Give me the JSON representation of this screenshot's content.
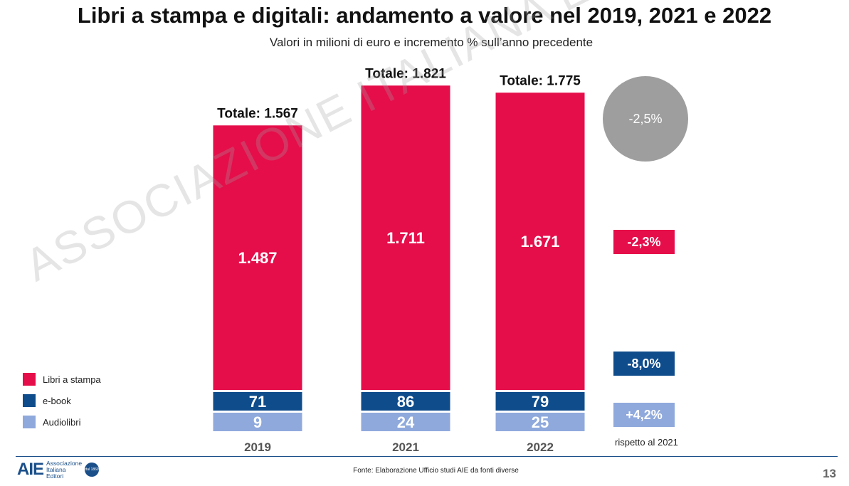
{
  "title": "Libri a stampa e digitali: andamento a valore nel 2019, 2021 e 2022",
  "subtitle": "Valori in milioni di euro e incremento % sull’anno precedente",
  "watermark": "ASSOCIAZIONE ITALIANA EDITORI",
  "chart_data": {
    "type": "bar",
    "stacked": true,
    "categories": [
      "2019",
      "2021",
      "2022"
    ],
    "series": [
      {
        "name": "Audiolibri",
        "values": [
          9,
          24,
          25
        ],
        "value_labels": [
          "9",
          "24",
          "25"
        ],
        "color": "#8fa9dc"
      },
      {
        "name": "e-book",
        "values": [
          71,
          86,
          79
        ],
        "value_labels": [
          "71",
          "86",
          "79"
        ],
        "color": "#0f4c8c"
      },
      {
        "name": "Libri a stampa",
        "values": [
          1487,
          1711,
          1671
        ],
        "value_labels": [
          "1.487",
          "1.711",
          "1.671"
        ],
        "color": "#e50d4a"
      }
    ],
    "totals": [
      1567,
      1821,
      1775
    ],
    "total_labels": [
      "Totale: 1.567",
      "Totale: 1.821",
      "Totale: 1.775"
    ],
    "legend_placement": "bottom-left",
    "grid": false
  },
  "legend": [
    {
      "label": "Libri a stampa",
      "color": "#e50d4a"
    },
    {
      "label": "e-book",
      "color": "#0f4c8c"
    },
    {
      "label": "Audiolibri",
      "color": "#8fa9dc"
    }
  ],
  "changes": {
    "total": "-2,5%",
    "libri_a_stampa": "-2,3%",
    "ebook": "-8,0%",
    "audiolibri": "+4,2%",
    "note": "rispetto al 2021",
    "total_color": "#9e9e9e"
  },
  "footer": {
    "source": "Fonte: Elaborazione Ufficio studi AIE da fonti diverse",
    "page_number": "13",
    "logo_mark": "AIE",
    "logo_lines": [
      "Associazione",
      "Italiana",
      "Editori"
    ],
    "logo_badge": "dal 1869"
  }
}
